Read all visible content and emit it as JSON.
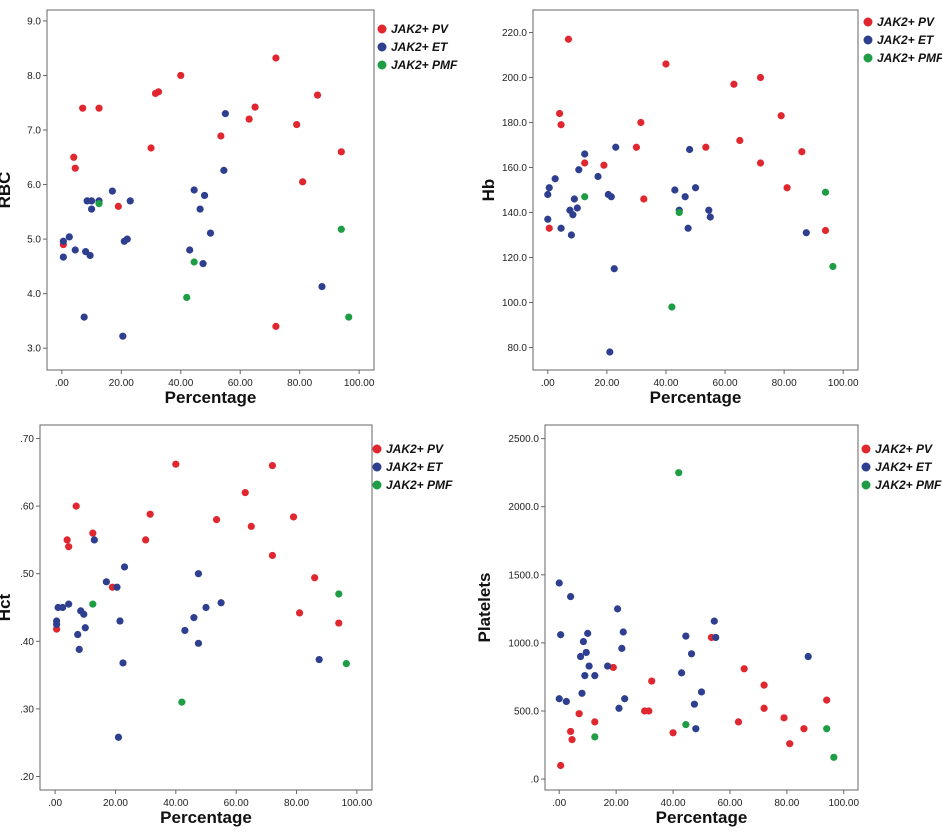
{
  "legend": [
    {
      "name": "JAK2+ PV",
      "color": "#e0272f"
    },
    {
      "name": "JAK2+ ET",
      "color": "#2e3f8f"
    },
    {
      "name": "JAK2+ PMF",
      "color": "#1f9d45"
    }
  ],
  "chart_data": [
    {
      "type": "scatter",
      "xlabel": "Percentage",
      "ylabel": "RBC",
      "xlim": [
        -5,
        105
      ],
      "ylim": [
        2.6,
        9.2
      ],
      "xticks": [
        ".00",
        "20.00",
        "40.00",
        "60.00",
        "80.00",
        "100.00"
      ],
      "yticks": [
        "3.0",
        "4.0",
        "5.0",
        "6.0",
        "7.0",
        "8.0",
        "9.0"
      ],
      "legend_position": "top-right",
      "grid": false,
      "series": [
        {
          "name": "JAK2+ PV",
          "points": [
            [
              0.5,
              4.9
            ],
            [
              4,
              6.5
            ],
            [
              4.5,
              6.3
            ],
            [
              7,
              7.4
            ],
            [
              12.5,
              7.4
            ],
            [
              19,
              5.6
            ],
            [
              30,
              6.67
            ],
            [
              31.5,
              7.67
            ],
            [
              32.5,
              7.7
            ],
            [
              40,
              8.0
            ],
            [
              53.5,
              6.89
            ],
            [
              63,
              7.2
            ],
            [
              65,
              7.42
            ],
            [
              72,
              8.32
            ],
            [
              72,
              3.4
            ],
            [
              79,
              7.1
            ],
            [
              81,
              6.05
            ],
            [
              86,
              7.64
            ],
            [
              94,
              6.6
            ]
          ]
        },
        {
          "name": "JAK2+ ET",
          "points": [
            [
              0.5,
              4.67
            ],
            [
              0.5,
              4.96
            ],
            [
              2.5,
              5.04
            ],
            [
              4.5,
              4.8
            ],
            [
              7.5,
              3.57
            ],
            [
              8,
              4.77
            ],
            [
              8.5,
              5.7
            ],
            [
              9.5,
              4.7
            ],
            [
              10,
              5.7
            ],
            [
              10,
              5.55
            ],
            [
              12.5,
              5.7
            ],
            [
              17,
              5.88
            ],
            [
              20.5,
              3.22
            ],
            [
              21,
              4.96
            ],
            [
              22,
              5.0
            ],
            [
              23,
              5.7
            ],
            [
              43,
              4.8
            ],
            [
              44.5,
              5.9
            ],
            [
              46.5,
              5.55
            ],
            [
              47.5,
              4.55
            ],
            [
              48,
              5.8
            ],
            [
              50,
              5.11
            ],
            [
              54.5,
              6.26
            ],
            [
              55,
              7.3
            ],
            [
              87.5,
              4.13
            ]
          ]
        },
        {
          "name": "JAK2+ PMF",
          "points": [
            [
              12.5,
              5.65
            ],
            [
              42,
              3.93
            ],
            [
              44.5,
              4.58
            ],
            [
              94,
              5.18
            ],
            [
              96.5,
              3.57
            ]
          ]
        }
      ]
    },
    {
      "type": "scatter",
      "xlabel": "Percentage",
      "ylabel": "Hb",
      "xlim": [
        -5,
        105
      ],
      "ylim": [
        70,
        230
      ],
      "xticks": [
        ".00",
        "20.00",
        "40.00",
        "60.00",
        "80.00",
        "100.00"
      ],
      "yticks": [
        "80.0",
        "100.0",
        "120.0",
        "140.0",
        "160.0",
        "180.0",
        "200.0",
        "220.0"
      ],
      "legend_position": "top-right",
      "grid": false,
      "series": [
        {
          "name": "JAK2+ PV",
          "points": [
            [
              0.5,
              133
            ],
            [
              4,
              184
            ],
            [
              4.5,
              179
            ],
            [
              7,
              217
            ],
            [
              12.5,
              162
            ],
            [
              19,
              161
            ],
            [
              30,
              169
            ],
            [
              31.5,
              180
            ],
            [
              32.5,
              146
            ],
            [
              40,
              206
            ],
            [
              53.5,
              169
            ],
            [
              63,
              197
            ],
            [
              65,
              172
            ],
            [
              72,
              200
            ],
            [
              72,
              162
            ],
            [
              79,
              183
            ],
            [
              81,
              151
            ],
            [
              86,
              167
            ],
            [
              94,
              132
            ]
          ]
        },
        {
          "name": "JAK2+ ET",
          "points": [
            [
              0,
              137
            ],
            [
              0,
              148
            ],
            [
              0.5,
              151
            ],
            [
              2.5,
              155
            ],
            [
              4.5,
              133
            ],
            [
              7.5,
              141
            ],
            [
              8,
              130
            ],
            [
              8.5,
              139
            ],
            [
              9,
              146
            ],
            [
              10,
              142
            ],
            [
              10.5,
              159
            ],
            [
              12.5,
              166
            ],
            [
              17,
              156
            ],
            [
              20.5,
              148
            ],
            [
              21,
              78
            ],
            [
              21.5,
              147
            ],
            [
              22.5,
              115
            ],
            [
              23,
              169
            ],
            [
              43,
              150
            ],
            [
              44.5,
              141
            ],
            [
              46.5,
              147
            ],
            [
              47.5,
              133
            ],
            [
              48,
              168
            ],
            [
              50,
              151
            ],
            [
              54.5,
              141
            ],
            [
              55,
              138
            ],
            [
              87.5,
              131
            ]
          ]
        },
        {
          "name": "JAK2+ PMF",
          "points": [
            [
              12.5,
              147
            ],
            [
              42,
              98
            ],
            [
              44.5,
              140
            ],
            [
              94,
              149
            ],
            [
              96.5,
              116
            ]
          ]
        }
      ]
    },
    {
      "type": "scatter",
      "xlabel": "Percentage",
      "ylabel": "Hct",
      "xlim": [
        -5,
        105
      ],
      "ylim": [
        0.18,
        0.72
      ],
      "xticks": [
        ".00",
        "20.00",
        "40.00",
        "60.00",
        "80.00",
        "100.00"
      ],
      "yticks": [
        ".20",
        ".30",
        ".40",
        ".50",
        ".60",
        ".70"
      ],
      "legend_position": "top-right",
      "grid": false,
      "series": [
        {
          "name": "JAK2+ PV",
          "points": [
            [
              0.5,
              0.418
            ],
            [
              4,
              0.55
            ],
            [
              4.5,
              0.54
            ],
            [
              7,
              0.6
            ],
            [
              12.5,
              0.56
            ],
            [
              19,
              0.48
            ],
            [
              30,
              0.55
            ],
            [
              31.5,
              0.588
            ],
            [
              40,
              0.662
            ],
            [
              53.5,
              0.58
            ],
            [
              63,
              0.62
            ],
            [
              65,
              0.57
            ],
            [
              72,
              0.66
            ],
            [
              72,
              0.527
            ],
            [
              79,
              0.584
            ],
            [
              81,
              0.442
            ],
            [
              86,
              0.494
            ],
            [
              94,
              0.427
            ]
          ]
        },
        {
          "name": "JAK2+ ET",
          "points": [
            [
              0.5,
              0.43
            ],
            [
              0.5,
              0.425
            ],
            [
              1,
              0.45
            ],
            [
              2.5,
              0.45
            ],
            [
              4.5,
              0.455
            ],
            [
              7.5,
              0.41
            ],
            [
              8,
              0.388
            ],
            [
              8.5,
              0.445
            ],
            [
              9.5,
              0.44
            ],
            [
              10,
              0.42
            ],
            [
              13,
              0.55
            ],
            [
              17,
              0.488
            ],
            [
              20.5,
              0.48
            ],
            [
              21,
              0.258
            ],
            [
              21.5,
              0.43
            ],
            [
              22.5,
              0.368
            ],
            [
              23,
              0.51
            ],
            [
              43,
              0.416
            ],
            [
              46,
              0.435
            ],
            [
              47.5,
              0.5
            ],
            [
              47.5,
              0.397
            ],
            [
              50,
              0.45
            ],
            [
              55,
              0.457
            ],
            [
              87.5,
              0.373
            ]
          ]
        },
        {
          "name": "JAK2+ PMF",
          "points": [
            [
              12.5,
              0.455
            ],
            [
              42,
              0.31
            ],
            [
              94,
              0.47
            ],
            [
              96.5,
              0.367
            ]
          ]
        }
      ]
    },
    {
      "type": "scatter",
      "xlabel": "Percentage",
      "ylabel": "Platelets",
      "xlim": [
        -5,
        105
      ],
      "ylim": [
        -80,
        2600
      ],
      "xticks": [
        ".00",
        "20.00",
        "40.00",
        "60.00",
        "80.00",
        "100.00"
      ],
      "yticks": [
        ".0",
        "500.0",
        "1000.0",
        "1500.0",
        "2000.0",
        "2500.0"
      ],
      "legend_position": "top-right",
      "grid": false,
      "series": [
        {
          "name": "JAK2+ PV",
          "points": [
            [
              0.5,
              100
            ],
            [
              4,
              350
            ],
            [
              4.5,
              290
            ],
            [
              7,
              480
            ],
            [
              12.5,
              420
            ],
            [
              19,
              820
            ],
            [
              30,
              500
            ],
            [
              31.5,
              500
            ],
            [
              32.5,
              720
            ],
            [
              40,
              340
            ],
            [
              53.5,
              1040
            ],
            [
              63,
              420
            ],
            [
              65,
              810
            ],
            [
              72,
              690
            ],
            [
              72,
              520
            ],
            [
              79,
              450
            ],
            [
              81,
              260
            ],
            [
              86,
              370
            ],
            [
              94,
              580
            ]
          ]
        },
        {
          "name": "JAK2+ ET",
          "points": [
            [
              0,
              590
            ],
            [
              0,
              1440
            ],
            [
              0.5,
              1060
            ],
            [
              2.5,
              570
            ],
            [
              4,
              1340
            ],
            [
              7.5,
              900
            ],
            [
              8,
              630
            ],
            [
              8.5,
              1010
            ],
            [
              9,
              760
            ],
            [
              9.5,
              930
            ],
            [
              10,
              1070
            ],
            [
              10.5,
              830
            ],
            [
              12.5,
              760
            ],
            [
              17,
              830
            ],
            [
              20.5,
              1250
            ],
            [
              21,
              520
            ],
            [
              22,
              960
            ],
            [
              22.5,
              1080
            ],
            [
              23,
              590
            ],
            [
              43,
              780
            ],
            [
              44.5,
              1050
            ],
            [
              46.5,
              920
            ],
            [
              47.5,
              550
            ],
            [
              48,
              370
            ],
            [
              50,
              640
            ],
            [
              54.5,
              1160
            ],
            [
              55,
              1040
            ],
            [
              87.5,
              900
            ]
          ]
        },
        {
          "name": "JAK2+ PMF",
          "points": [
            [
              12.5,
              310
            ],
            [
              42,
              2250
            ],
            [
              44.5,
              400
            ],
            [
              94,
              370
            ],
            [
              96.5,
              160
            ]
          ]
        }
      ]
    }
  ]
}
